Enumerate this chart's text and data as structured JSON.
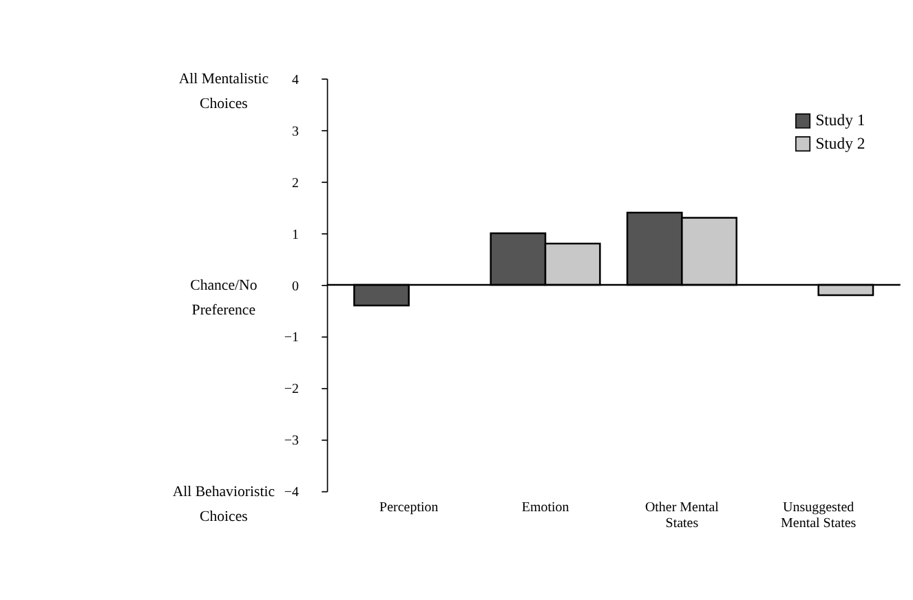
{
  "chart_data": {
    "type": "bar",
    "categories": [
      "Perception",
      "Emotion",
      "Other Mental\nStates",
      "Unsuggested\nMental States"
    ],
    "series": [
      {
        "name": "Study 1",
        "color": "#555555",
        "values": [
          -0.4,
          1.0,
          1.4,
          null
        ]
      },
      {
        "name": "Study 2",
        "color": "#c8c8c8",
        "values": [
          null,
          0.8,
          1.3,
          -0.2
        ]
      }
    ],
    "ylim": [
      -4,
      4
    ],
    "yticks": [
      -4,
      -3,
      -2,
      -1,
      0,
      1,
      2,
      3,
      4
    ],
    "annotations": [
      "All Mentalistic\nChoices",
      "Chance/No\nPreference",
      "All Behavioristic\nChoices"
    ],
    "ref_lines": [
      {
        "axis": "y",
        "value": 0
      }
    ],
    "grid": false,
    "legend": "top right"
  }
}
